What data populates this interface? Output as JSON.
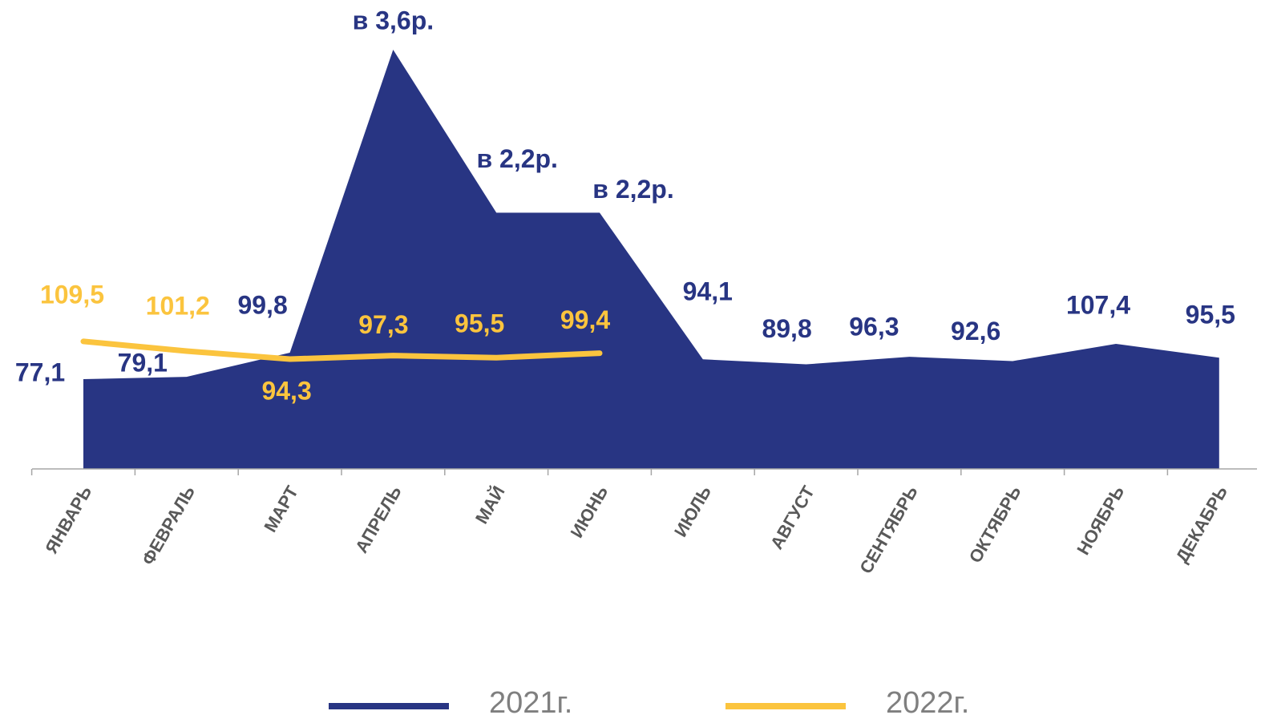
{
  "chart_data": {
    "type": "area",
    "categories": [
      "ЯНВАРЬ",
      "ФЕВРАЛЬ",
      "МАРТ",
      "АПРЕЛЬ",
      "МАЙ",
      "ИЮНЬ",
      "ИЮЛЬ",
      "АВГУСТ",
      "СЕНТЯБРЬ",
      "ОКТЯБРЬ",
      "НОЯБРЬ",
      "ДЕКАБРЬ"
    ],
    "series": [
      {
        "name": "2021г.",
        "type": "area",
        "color": "#283583",
        "values": [
          77.1,
          79.1,
          99.8,
          360,
          220,
          220,
          94.1,
          89.8,
          96.3,
          92.6,
          107.4,
          95.5
        ],
        "value_labels": [
          "77,1",
          "79,1",
          "99,8",
          "в 3,6р.",
          "в 2,2р.",
          "в 2,2р.",
          "94,1",
          "89,8",
          "96,3",
          "92,6",
          "107,4",
          "95,5"
        ]
      },
      {
        "name": "2022г.",
        "type": "line",
        "color": "#fbc43e",
        "values": [
          109.5,
          101.2,
          94.3,
          97.3,
          95.5,
          99.4,
          null,
          null,
          null,
          null,
          null,
          null
        ],
        "value_labels": [
          "109,5",
          "101,2",
          "94,3",
          "97,3",
          "95,5",
          "99,4",
          null,
          null,
          null,
          null,
          null,
          null
        ]
      }
    ],
    "ylim": [
      0,
      360
    ],
    "legend": "bottom"
  }
}
